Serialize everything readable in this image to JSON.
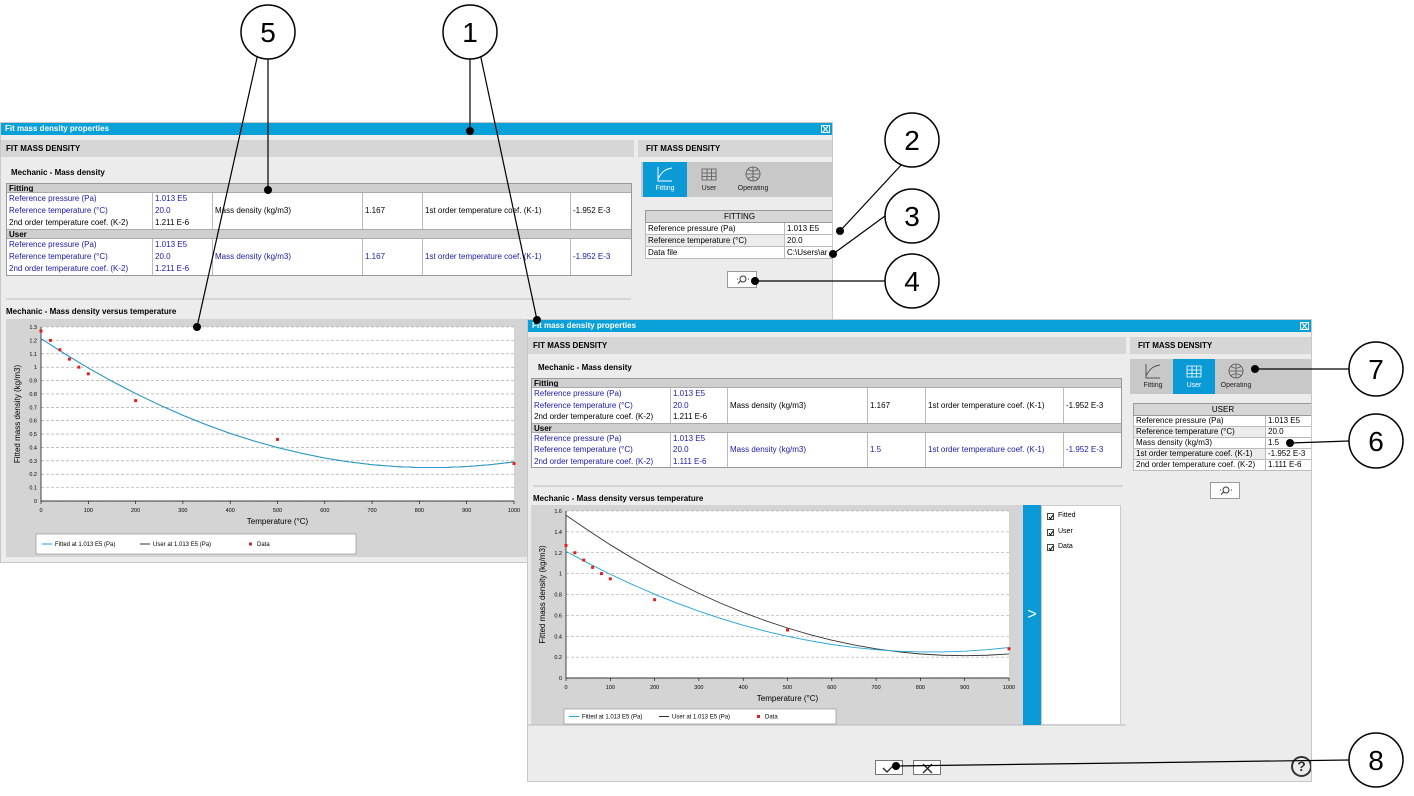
{
  "callouts": [
    "5",
    "1",
    "2",
    "3",
    "4",
    "7",
    "6",
    "8"
  ],
  "window1": {
    "title": "Fit mass density properties",
    "header": "FIT MASS DENSITY",
    "subtitle": "Mechanic - Mass density",
    "table": [
      {
        "name": "Fitting",
        "rows": [
          [
            "Reference pressure (Pa)",
            "1.013 E5"
          ],
          [
            "Reference temperature (°C)",
            "20.0",
            "Mass density (kg/m3)",
            "1.167",
            "1st order temperature coef. (K-1)",
            "-1.952 E-3"
          ],
          [
            "2nd order temperature coef. (K-2)",
            "1.211 E-6"
          ]
        ]
      },
      {
        "name": "User",
        "rows": [
          [
            "Reference pressure (Pa)",
            "1.013 E5"
          ],
          [
            "Reference temperature (°C)",
            "20.0",
            "Mass density (kg/m3)",
            "1.167",
            "1st order temperature coef. (K-1)",
            "-1.952 E-3"
          ],
          [
            "2nd order temperature coef. (K-2)",
            "1.211 E-6"
          ]
        ]
      }
    ],
    "chart_title": "Mechanic - Mass density versus temperature",
    "chart": {
      "type": "line",
      "x_label": "Temperature (°C)",
      "y_label": "Fitted mass density (kg/m3)",
      "xlim": [
        0,
        1000
      ],
      "ylim": [
        0,
        1.3
      ],
      "xticks": [
        0,
        100,
        200,
        300,
        400,
        500,
        600,
        700,
        800,
        900,
        1000
      ],
      "yticks": [
        0,
        0.1,
        0.2,
        0.3,
        0.4,
        0.5,
        0.6,
        0.7,
        0.8,
        0.9,
        1,
        1.1,
        1.2,
        1.3
      ],
      "x": [
        0,
        50,
        100,
        150,
        200,
        250,
        300,
        350,
        400,
        450,
        500,
        550,
        600,
        650,
        700,
        750,
        800,
        850,
        900,
        950,
        1000
      ],
      "series": [
        {
          "name": "Fitted at 1.013 E5 (Pa)",
          "color": "#1fa3d8",
          "values": [
            1.213,
            1.1,
            0.994,
            0.895,
            0.803,
            0.718,
            0.64,
            0.569,
            0.505,
            0.449,
            0.399,
            0.357,
            0.321,
            0.293,
            0.271,
            0.257,
            0.25,
            0.25,
            0.257,
            0.271,
            0.292
          ]
        },
        {
          "name": "User at 1.013 E5 (Pa)",
          "color": "#333333",
          "values": [
            1.213,
            1.1,
            0.994,
            0.895,
            0.803,
            0.718,
            0.64,
            0.569,
            0.505,
            0.449,
            0.399,
            0.357,
            0.321,
            0.293,
            0.271,
            0.257,
            0.25,
            0.25,
            0.257,
            0.271,
            0.292
          ]
        }
      ],
      "points": {
        "name": "Data",
        "color": "#e02020",
        "x": [
          0,
          20,
          40,
          60,
          80,
          100,
          200,
          500,
          1000
        ],
        "values": [
          1.27,
          1.2,
          1.13,
          1.06,
          1.0,
          0.95,
          0.75,
          0.46,
          0.28
        ]
      }
    },
    "panel": {
      "header": "FIT MASS DENSITY",
      "tabs": [
        "Fitting",
        "User",
        "Operating"
      ],
      "active_tab": "Fitting",
      "table_title": "FITTING",
      "rows": [
        [
          "Reference pressure (Pa)",
          "1.013 E5"
        ],
        [
          "Reference temperature (°C)",
          "20.0"
        ],
        [
          "Data file",
          "C:\\Users\\ar"
        ]
      ]
    }
  },
  "window2": {
    "title": "Fit mass density properties",
    "header": "FIT MASS DENSITY",
    "subtitle": "Mechanic - Mass density",
    "table": [
      {
        "name": "Fitting",
        "rows": [
          [
            "Reference pressure (Pa)",
            "1.013 E5"
          ],
          [
            "Reference temperature (°C)",
            "20.0",
            "Mass density (kg/m3)",
            "1.167",
            "1st order temperature coef. (K-1)",
            "-1.952 E-3"
          ],
          [
            "2nd order temperature coef. (K-2)",
            "1.211 E-6"
          ]
        ]
      },
      {
        "name": "User",
        "rows": [
          [
            "Reference pressure (Pa)",
            "1.013 E5"
          ],
          [
            "Reference temperature (°C)",
            "20.0",
            "Mass density (kg/m3)",
            "1.5",
            "1st order temperature coef. (K-1)",
            "-1.952 E-3"
          ],
          [
            "2nd order temperature coef. (K-2)",
            "1.111 E-6"
          ]
        ]
      }
    ],
    "chart_title": "Mechanic - Mass density versus temperature",
    "chart": {
      "type": "line",
      "x_label": "Temperature (°C)",
      "y_label": "Fitted mass density (kg/m3)",
      "xlim": [
        0,
        1000
      ],
      "ylim": [
        0,
        1.6
      ],
      "xticks": [
        0,
        100,
        200,
        300,
        400,
        500,
        600,
        700,
        800,
        900,
        1000
      ],
      "yticks": [
        0,
        0.2,
        0.4,
        0.6,
        0.8,
        1,
        1.2,
        1.4,
        1.6
      ],
      "x": [
        0,
        50,
        100,
        150,
        200,
        250,
        300,
        350,
        400,
        450,
        500,
        550,
        600,
        650,
        700,
        750,
        800,
        850,
        900,
        950,
        1000
      ],
      "series": [
        {
          "name": "Fitted at 1.013 E5 (Pa)",
          "color": "#1fa3d8",
          "values": [
            1.213,
            1.1,
            0.994,
            0.895,
            0.803,
            0.718,
            0.64,
            0.569,
            0.505,
            0.449,
            0.399,
            0.357,
            0.321,
            0.293,
            0.271,
            0.257,
            0.25,
            0.25,
            0.257,
            0.271,
            0.292
          ]
        },
        {
          "name": "User at 1.013 E5 (Pa)",
          "color": "#333333",
          "values": [
            1.559,
            1.414,
            1.276,
            1.148,
            1.027,
            0.915,
            0.811,
            0.715,
            0.628,
            0.549,
            0.479,
            0.416,
            0.362,
            0.317,
            0.28,
            0.251,
            0.23,
            0.218,
            0.214,
            0.218,
            0.231
          ]
        }
      ],
      "points": {
        "name": "Data",
        "color": "#e02020",
        "x": [
          0,
          20,
          40,
          60,
          80,
          100,
          200,
          500,
          1000
        ],
        "values": [
          1.27,
          1.2,
          1.13,
          1.06,
          1.0,
          0.95,
          0.75,
          0.46,
          0.28
        ]
      }
    },
    "panel": {
      "header": "FIT MASS DENSITY",
      "tabs": [
        "Fitting",
        "User",
        "Operating"
      ],
      "active_tab": "User",
      "table_title": "USER",
      "rows": [
        [
          "Reference pressure (Pa)",
          "1.013 E5"
        ],
        [
          "Reference temperature (°C)",
          "20.0"
        ],
        [
          "Mass density (kg/m3)",
          "1.5"
        ],
        [
          "1st order temperature coef. (K-1)",
          "-1.952 E-3"
        ],
        [
          "2nd order temperature coef. (K-2)",
          "1.111 E-6"
        ]
      ]
    },
    "checkboxes": [
      "Fitted",
      "User",
      "Data"
    ],
    "expand_button": ">",
    "help_button": "?"
  }
}
